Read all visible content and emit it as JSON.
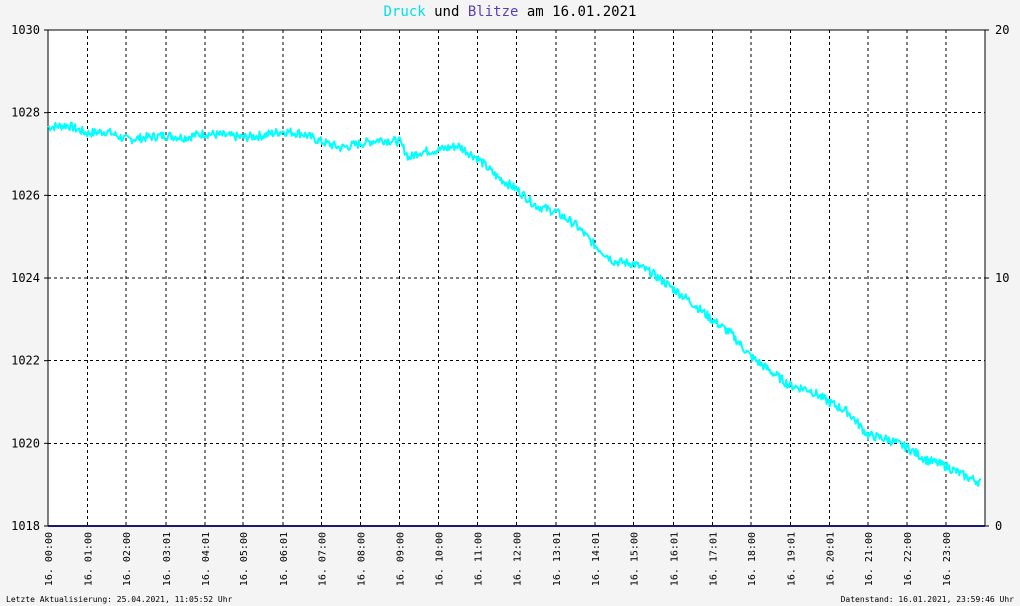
{
  "title": {
    "part1": "Druck",
    "part2": " und ",
    "part3": "Blitze",
    "part4": " am 16.01.2021",
    "color1": "#00e0e0",
    "color3": "#5a3fb0"
  },
  "footer": {
    "left": "Letzte Aktualisierung: 25.04.2021, 11:05:52 Uhr",
    "right": "Datenstand: 16.01.2021, 23:59:46 Uhr"
  },
  "colors": {
    "pressure": "#00ffff",
    "lightning": "#1a1a6e",
    "grid": "#000000",
    "background": "#ffffff"
  },
  "chart_data": {
    "type": "line",
    "title": "Druck und Blitze am 16.01.2021",
    "grid": true,
    "x": {
      "unit": "hour",
      "range": [
        0,
        24
      ],
      "tick_hours": [
        0.0,
        1.0167,
        2.0,
        3.0167,
        4.0167,
        5.0,
        6.0167,
        7.0,
        8.0,
        9.0,
        10.0,
        11.0,
        12.0,
        13.0167,
        14.0167,
        15.0,
        16.0167,
        17.0167,
        18.0,
        19.0167,
        20.0167,
        21.0,
        22.0,
        23.0
      ],
      "tick_labels": [
        "16. 00:00",
        "16. 01:00",
        "16. 02:00",
        "16. 03:01",
        "16. 04:01",
        "16. 05:00",
        "16. 06:01",
        "16. 07:00",
        "16. 08:00",
        "16. 09:00",
        "16. 10:00",
        "16. 11:00",
        "16. 12:00",
        "16. 13:01",
        "16. 14:01",
        "16. 15:00",
        "16. 16:01",
        "16. 17:01",
        "16. 18:00",
        "16. 19:01",
        "16. 20:01",
        "16. 21:00",
        "16. 22:00",
        "16. 23:00"
      ]
    },
    "y_left": {
      "range": [
        1018,
        1030
      ],
      "ticks": [
        1018,
        1020,
        1022,
        1024,
        1026,
        1028,
        1030
      ],
      "tick_labels": [
        "1018",
        "1020",
        "1022",
        "1024",
        "1026",
        "1028",
        "1030"
      ]
    },
    "y_right": {
      "range": [
        0,
        20
      ],
      "ticks": [
        0,
        10,
        20
      ],
      "tick_labels": [
        "0",
        "10",
        "20"
      ]
    },
    "series": [
      {
        "name": "Druck",
        "axis": "left",
        "x": [
          0.0,
          0.5,
          1.0,
          1.5,
          2.0,
          2.5,
          3.0,
          3.5,
          4.0,
          4.5,
          5.0,
          5.5,
          6.0,
          6.5,
          7.0,
          7.5,
          8.0,
          8.5,
          9.0,
          9.25,
          9.5,
          10.0,
          10.5,
          11.0,
          11.5,
          12.0,
          12.5,
          13.0,
          13.5,
          14.0,
          14.5,
          15.0,
          15.5,
          16.0,
          16.5,
          17.0,
          17.5,
          18.0,
          18.5,
          19.0,
          19.5,
          20.0,
          20.5,
          21.0,
          21.5,
          22.0,
          22.5,
          23.0,
          23.5,
          23.9
        ],
        "y": [
          1027.65,
          1027.7,
          1027.5,
          1027.55,
          1027.35,
          1027.4,
          1027.45,
          1027.4,
          1027.5,
          1027.45,
          1027.4,
          1027.45,
          1027.55,
          1027.5,
          1027.3,
          1027.15,
          1027.25,
          1027.35,
          1027.3,
          1026.9,
          1027.05,
          1027.1,
          1027.2,
          1026.9,
          1026.45,
          1026.15,
          1025.75,
          1025.6,
          1025.3,
          1024.8,
          1024.4,
          1024.35,
          1024.1,
          1023.75,
          1023.4,
          1023.0,
          1022.65,
          1022.1,
          1021.75,
          1021.4,
          1021.3,
          1021.0,
          1020.75,
          1020.2,
          1020.1,
          1019.9,
          1019.6,
          1019.45,
          1019.2,
          1019.05
        ]
      },
      {
        "name": "Blitze",
        "axis": "right",
        "x": [
          0,
          24
        ],
        "y": [
          0,
          0
        ]
      }
    ]
  }
}
